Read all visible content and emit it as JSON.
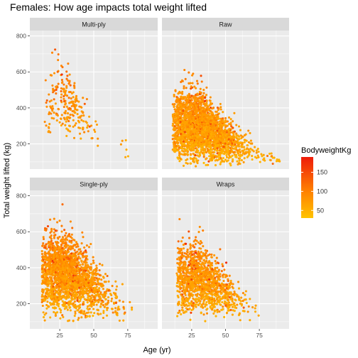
{
  "chart_data": {
    "type": "scatter",
    "title": "Females: How age impacts total weight lifted",
    "xlabel": "Age (yr)",
    "ylabel": "Total weight lifted (kg)",
    "xlim": [
      3,
      97
    ],
    "ylim": [
      60,
      830
    ],
    "x_ticks": [
      25,
      50,
      75
    ],
    "y_ticks": [
      200,
      400,
      600,
      800
    ],
    "grid": true,
    "facets": [
      {
        "label": "Multi-ply",
        "clusters": [
          {
            "x": [
              14,
              55
            ],
            "y": [
              180,
              800
            ],
            "n": 240,
            "peak_age": 30
          },
          {
            "x": [
              70,
              77
            ],
            "y": [
              110,
              300
            ],
            "n": 6,
            "peak_age": 73
          }
        ]
      },
      {
        "label": "Raw",
        "clusters": [
          {
            "x": [
              11,
              78
            ],
            "y": [
              70,
              640
            ],
            "n": 2600,
            "peak_age": 30
          },
          {
            "x": [
              78,
              90
            ],
            "y": [
              80,
              230
            ],
            "n": 20,
            "peak_age": 80
          }
        ]
      },
      {
        "label": "Single-ply",
        "clusters": [
          {
            "x": [
              12,
              80
            ],
            "y": [
              100,
              780
            ],
            "n": 2200,
            "peak_age": 28
          }
        ]
      },
      {
        "label": "Wraps",
        "clusters": [
          {
            "x": [
              14,
              75
            ],
            "y": [
              100,
              700
            ],
            "n": 1300,
            "peak_age": 30
          }
        ]
      }
    ],
    "color": {
      "variable": "BodyweightKg",
      "range": [
        30,
        190
      ],
      "ticks": [
        50,
        100,
        150
      ],
      "low": "#FFC300",
      "mid": "#FF8000",
      "high": "#EE1C0A"
    }
  },
  "theme": {
    "panel_bg": "#EBEBEB",
    "strip_bg": "#D9D9D9",
    "grid_major": "#FFFFFF"
  }
}
